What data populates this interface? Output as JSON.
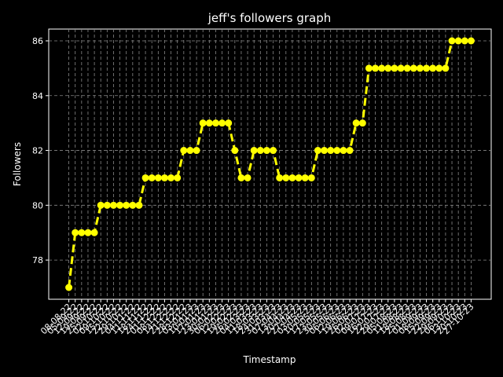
{
  "chart_data": {
    "type": "line",
    "title": "jeff's followers graph",
    "x_label": "Timestamp",
    "y_label": "Followers",
    "categories": [
      "08-08-22",
      "05-09-22",
      "12-09-22",
      "19-09-22",
      "25-09-22",
      "02-10-22",
      "09-10-22",
      "15-10-22",
      "22-10-22",
      "29-10-22",
      "04-11-22",
      "11-11-22",
      "18-11-22",
      "24-11-22",
      "01-12-22",
      "08-12-22",
      "14-12-22",
      "21-12-22",
      "28-12-22",
      "03-01-23",
      "10-01-23",
      "17-01-23",
      "23-01-23",
      "30-01-23",
      "06-02-23",
      "12-02-23",
      "19-02-23",
      "26-02-23",
      "04-03-23",
      "11-03-23",
      "18-03-23",
      "24-03-23",
      "31-03-23",
      "07-04-23",
      "13-04-23",
      "20-04-23",
      "27-04-23",
      "03-05-23",
      "10-05-23",
      "17-05-23",
      "23-05-23",
      "30-05-23",
      "06-06-23",
      "12-06-23",
      "19-06-23",
      "26-06-23",
      "02-07-23",
      "09-07-23",
      "16-07-23",
      "22-07-23",
      "29-07-23",
      "05-08-23",
      "11-08-23",
      "18-08-23",
      "25-08-23",
      "01-09-23",
      "08-09-23",
      "15-09-23",
      "22-09-23",
      "29-09-23",
      "06-10-23",
      "13-10-23",
      "20-10-23",
      "27-10-23"
    ],
    "series": [
      {
        "name": "Followers",
        "color": "#ffff00",
        "values": [
          77,
          79,
          79,
          79,
          79,
          80,
          80,
          80,
          80,
          80,
          80,
          80,
          81,
          81,
          81,
          81,
          81,
          81,
          82,
          82,
          82,
          83,
          83,
          83,
          83,
          83,
          82,
          81,
          81,
          82,
          82,
          82,
          82,
          81,
          81,
          81,
          81,
          81,
          81,
          82,
          82,
          82,
          82,
          82,
          82,
          83,
          83,
          85,
          85,
          85,
          85,
          85,
          85,
          85,
          85,
          85,
          85,
          85,
          85,
          85,
          86,
          86,
          86,
          86
        ]
      }
    ],
    "ylim": [
      76.57,
      86.43
    ],
    "yticks": [
      78,
      80,
      82,
      84,
      86
    ],
    "grid": true
  }
}
